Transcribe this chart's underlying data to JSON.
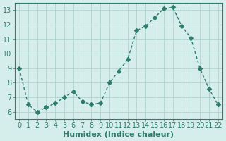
{
  "x": [
    0,
    1,
    2,
    3,
    4,
    5,
    6,
    7,
    8,
    9,
    10,
    11,
    12,
    13,
    14,
    15,
    16,
    17,
    18,
    19,
    20,
    21,
    22
  ],
  "y": [
    9.0,
    6.5,
    6.0,
    6.3,
    6.6,
    7.0,
    7.4,
    6.7,
    6.5,
    6.6,
    8.0,
    8.8,
    9.6,
    11.6,
    11.9,
    12.5,
    13.1,
    13.2,
    11.9,
    11.1,
    9.0,
    7.6,
    6.5
  ],
  "line_color": "#2e7d6e",
  "marker": "D",
  "marker_size": 3,
  "bg_color": "#d6eeeb",
  "grid_color": "#b0d4cf",
  "xlabel": "Humidex (Indice chaleur)",
  "ylim": [
    5.5,
    13.5
  ],
  "xlim": [
    -0.5,
    22.5
  ],
  "yticks": [
    6,
    7,
    8,
    9,
    10,
    11,
    12,
    13
  ],
  "xticks": [
    0,
    1,
    2,
    3,
    4,
    5,
    6,
    7,
    8,
    9,
    10,
    11,
    12,
    13,
    14,
    15,
    16,
    17,
    18,
    19,
    20,
    21,
    22
  ],
  "tick_color": "#2e7d6e",
  "label_color": "#2e7d6e",
  "axis_color": "#2e7d6e",
  "font_size": 7
}
